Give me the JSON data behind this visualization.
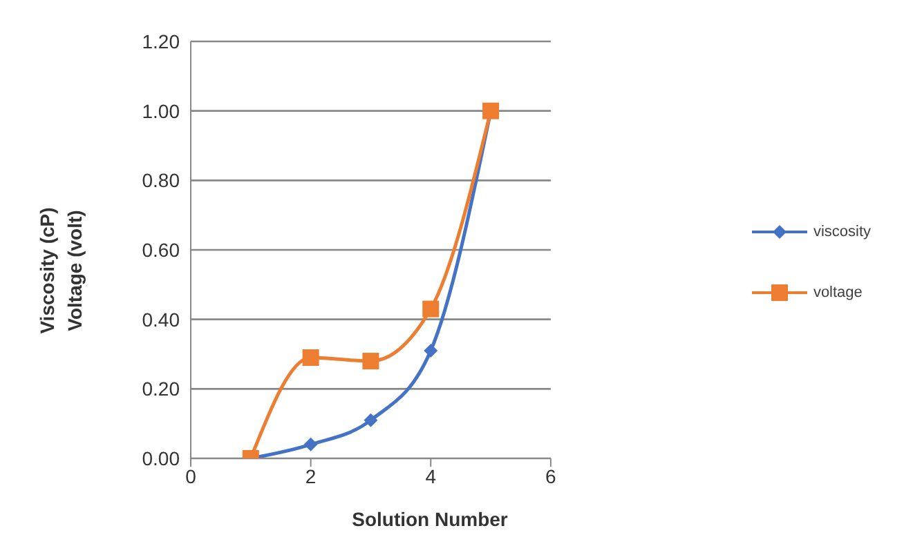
{
  "chart_data": {
    "type": "line",
    "xlabel": "Solution Number",
    "ylabel": "Viscosity (cP)\nVoltage (volt)",
    "x": [
      1,
      2,
      3,
      4,
      5
    ],
    "series": [
      {
        "name": "viscosity",
        "color": "#4472c4",
        "marker": "diamond",
        "values": [
          0,
          0.04,
          0.11,
          0.31,
          1.0
        ]
      },
      {
        "name": "voltage",
        "color": "#ed7d31",
        "marker": "square",
        "values": [
          0,
          0.29,
          0.28,
          0.43,
          1.0
        ]
      }
    ],
    "xlim": [
      0,
      6
    ],
    "xticks": [
      0,
      2,
      4,
      6
    ],
    "ylim": [
      0,
      1.2
    ],
    "yticks": [
      {
        "value": 0,
        "label": "0.00"
      },
      {
        "value": 0.2,
        "label": "0.20"
      },
      {
        "value": 0.4,
        "label": "0.40"
      },
      {
        "value": 0.6,
        "label": "0.60"
      },
      {
        "value": 0.8,
        "label": "0.80"
      },
      {
        "value": 1.0,
        "label": "1.00"
      },
      {
        "value": 1.2,
        "label": "1.20"
      }
    ],
    "grid": "y",
    "legend": "right"
  }
}
